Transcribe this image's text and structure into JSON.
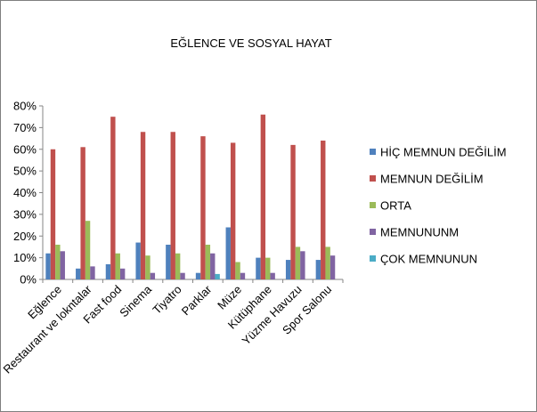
{
  "chart_data": {
    "type": "bar",
    "title": "EĞLENCE VE SOSYAL  HAYAT",
    "xlabel": "",
    "ylabel": "",
    "ylim": [
      0,
      0.8
    ],
    "y_ticks": [
      0,
      0.1,
      0.2,
      0.3,
      0.4,
      0.5,
      0.6,
      0.7,
      0.8
    ],
    "y_tick_labels": [
      "0%",
      "10%",
      "20%",
      "30%",
      "40%",
      "50%",
      "60%",
      "70%",
      "80%"
    ],
    "categories": [
      "Eğlence",
      "Restaurant ve lokntalar",
      "Fast food",
      "Sinema",
      "Tiyatro",
      "Parklar",
      "Müze",
      "Kütüphane",
      "Yüzme Havuzu",
      "Spor Salonu"
    ],
    "series": [
      {
        "name": "HİÇ MEMNUN DEĞİLİM",
        "color": "#4f81bd",
        "values": [
          0.12,
          0.05,
          0.07,
          0.17,
          0.16,
          0.03,
          0.24,
          0.1,
          0.09,
          0.09
        ]
      },
      {
        "name": "MEMNUN DEĞİLİM",
        "color": "#c0504d",
        "values": [
          0.6,
          0.61,
          0.75,
          0.68,
          0.68,
          0.66,
          0.63,
          0.76,
          0.62,
          0.64
        ]
      },
      {
        "name": "ORTA",
        "color": "#9bbb59",
        "values": [
          0.16,
          0.27,
          0.12,
          0.11,
          0.12,
          0.16,
          0.08,
          0.1,
          0.15,
          0.15
        ]
      },
      {
        "name": "MEMNUNUNM",
        "color": "#8064a2",
        "values": [
          0.13,
          0.06,
          0.05,
          0.03,
          0.03,
          0.12,
          0.03,
          0.03,
          0.13,
          0.11
        ]
      },
      {
        "name": "ÇOK MEMNUNUN",
        "color": "#4bacc6",
        "values": [
          0.0,
          0.0,
          0.0,
          0.0,
          0.0,
          0.025,
          0.0,
          0.0,
          0.0,
          0.0
        ]
      }
    ],
    "grid": false,
    "legend_position": "right"
  }
}
